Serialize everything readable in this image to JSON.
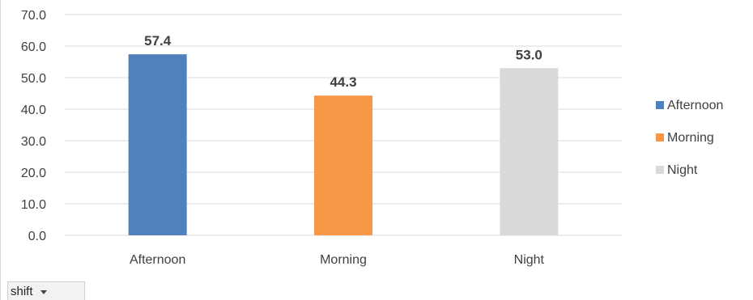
{
  "chart_data": {
    "type": "bar",
    "categories": [
      "Afternoon",
      "Morning",
      "Night"
    ],
    "values": [
      57.4,
      44.3,
      53.0
    ],
    "data_labels": [
      "57.4",
      "44.3",
      "53.0"
    ],
    "colors": [
      "#4f81bd",
      "#f79646",
      "#d9d9d9"
    ],
    "ylim": [
      0,
      70
    ],
    "yticks": [
      0,
      10,
      20,
      30,
      40,
      50,
      60,
      70
    ],
    "ytick_labels": [
      "0.0",
      "10.0",
      "20.0",
      "30.0",
      "40.0",
      "50.0",
      "60.0",
      "70.0"
    ],
    "grid": true,
    "legend": {
      "position": "right",
      "entries": [
        "Afternoon",
        "Morning",
        "Night"
      ]
    },
    "title": "",
    "xlabel": "",
    "ylabel": ""
  },
  "filter_button": {
    "label": "shift",
    "icon": "chevron-down-icon"
  },
  "style": {
    "gridline_color": "#d9d9d9",
    "tick_text_color": "#404040",
    "data_label_color": "#404040"
  }
}
